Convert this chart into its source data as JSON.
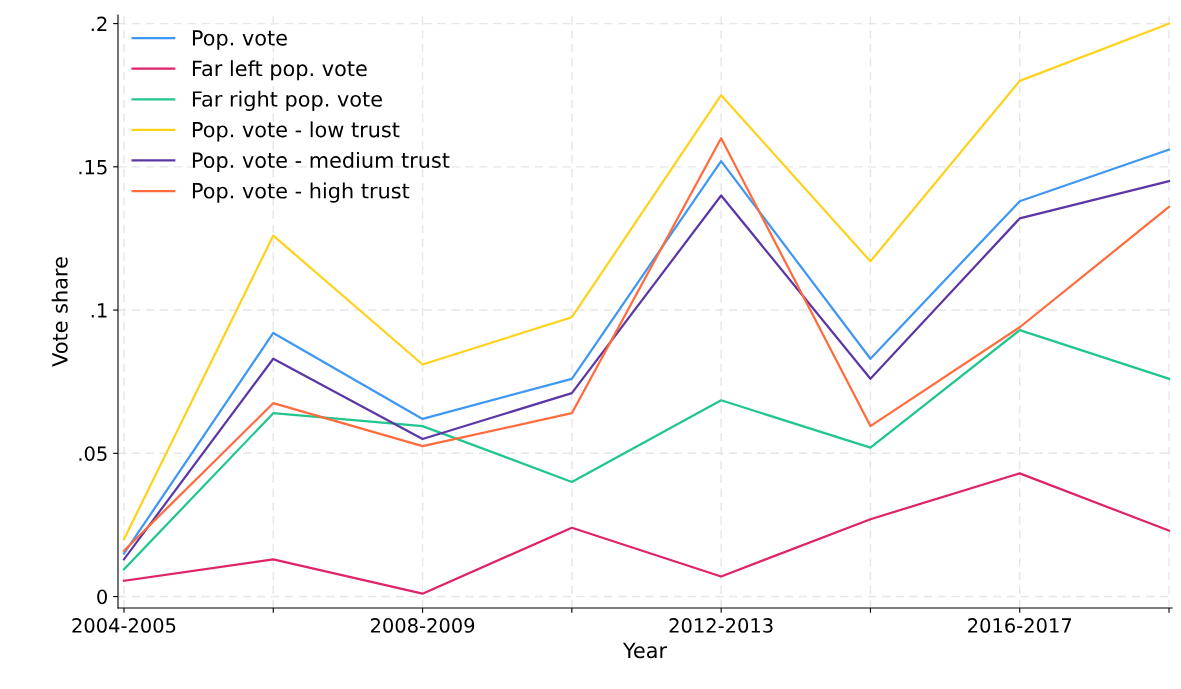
{
  "chart_data": {
    "type": "line",
    "xlabel": "Year",
    "ylabel": "Vote share",
    "categories": [
      "2004-2005",
      null,
      "2008-2009",
      null,
      "2012-2013",
      null,
      "2016-2017",
      null
    ],
    "ylim": [
      -0.004,
      0.203
    ],
    "yticks": [
      {
        "value": 0,
        "label": "0"
      },
      {
        "value": 0.05,
        "label": ".05"
      },
      {
        "value": 0.1,
        "label": ".1"
      },
      {
        "value": 0.15,
        "label": ".15"
      },
      {
        "value": 0.2,
        "label": ".2"
      }
    ],
    "grid": true,
    "legend": "top left",
    "marker": "none",
    "line_style": "solid",
    "series": [
      {
        "name": "Pop. vote",
        "color": "#3e97f3",
        "values": [
          0.015,
          0.092,
          0.062,
          0.076,
          0.152,
          0.083,
          0.138,
          0.156
        ]
      },
      {
        "name": "Far left pop. vote",
        "color": "#e0226b",
        "values": [
          0.0055,
          0.013,
          0.001,
          0.024,
          0.007,
          0.027,
          0.043,
          0.023
        ]
      },
      {
        "name": "Far right pop. vote",
        "color": "#21c68e",
        "values": [
          0.0095,
          0.064,
          0.0595,
          0.04,
          0.0685,
          0.052,
          0.093,
          0.076
        ]
      },
      {
        "name": "Pop. vote - low trust",
        "color": "#ffd21a",
        "values": [
          0.02,
          0.126,
          0.081,
          0.0975,
          0.175,
          0.117,
          0.18,
          0.2
        ]
      },
      {
        "name": "Pop. vote - medium trust",
        "color": "#5b37a6",
        "values": [
          0.013,
          0.083,
          0.055,
          0.071,
          0.14,
          0.076,
          0.132,
          0.145
        ]
      },
      {
        "name": "Pop. vote - high trust",
        "color": "#ff6b3d",
        "values": [
          0.016,
          0.0675,
          0.0525,
          0.064,
          0.16,
          0.0595,
          0.094,
          0.136
        ]
      }
    ]
  }
}
